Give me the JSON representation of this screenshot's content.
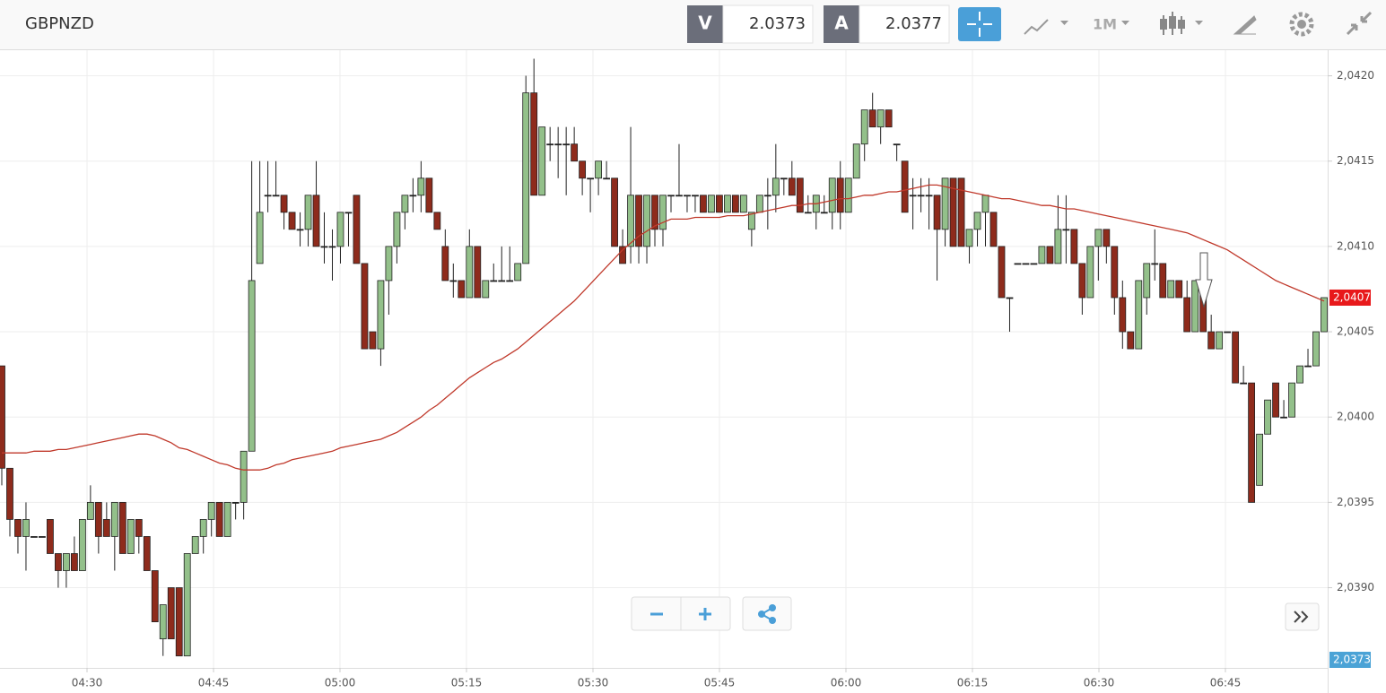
{
  "toolbar": {
    "symbol": "GBPNZD",
    "bid_label": "V",
    "bid": "2.0373",
    "ask_label": "A",
    "ask": "2.0377",
    "timeframe": "1M"
  },
  "chart_data": {
    "type": "candlestick",
    "candles": [
      [
        2.0403,
        2.0403,
        2.0396,
        2.0397
      ],
      [
        2.0397,
        2.0397,
        2.0393,
        2.0394
      ],
      [
        2.0394,
        2.0394,
        2.0392,
        2.0393
      ],
      [
        2.0393,
        2.0395,
        2.0391,
        2.0394
      ],
      [
        2.0393,
        2.0393,
        2.0393,
        2.0393
      ],
      [
        2.0393,
        2.0393,
        2.0393,
        2.0393
      ],
      [
        2.0394,
        2.0394,
        2.0392,
        2.0392
      ],
      [
        2.0392,
        2.0392,
        2.039,
        2.0391
      ],
      [
        2.0391,
        2.0392,
        2.039,
        2.0392
      ],
      [
        2.0392,
        2.0393,
        2.0391,
        2.0391
      ],
      [
        2.0391,
        2.0394,
        2.0391,
        2.0394
      ],
      [
        2.0394,
        2.0396,
        2.0394,
        2.0395
      ],
      [
        2.0395,
        2.0395,
        2.0392,
        2.0393
      ],
      [
        2.0394,
        2.0395,
        2.0393,
        2.0393
      ],
      [
        2.0393,
        2.0395,
        2.0391,
        2.0395
      ],
      [
        2.0395,
        2.0395,
        2.0392,
        2.0392
      ],
      [
        2.0392,
        2.0394,
        2.0392,
        2.0394
      ],
      [
        2.0394,
        2.0394,
        2.0392,
        2.0393
      ],
      [
        2.0393,
        2.0393,
        2.0391,
        2.0391
      ],
      [
        2.0391,
        2.0391,
        2.0388,
        2.0388
      ],
      [
        2.0387,
        2.0389,
        2.0386,
        2.0389
      ],
      [
        2.039,
        2.039,
        2.0387,
        2.0387
      ],
      [
        2.039,
        2.039,
        2.0386,
        2.0386
      ],
      [
        2.0386,
        2.0392,
        2.0386,
        2.0392
      ],
      [
        2.0392,
        2.0393,
        2.0392,
        2.0393
      ],
      [
        2.0393,
        2.0394,
        2.0392,
        2.0394
      ],
      [
        2.0394,
        2.0395,
        2.0393,
        2.0395
      ],
      [
        2.0395,
        2.0395,
        2.0393,
        2.0393
      ],
      [
        2.0393,
        2.0395,
        2.0393,
        2.0395
      ],
      [
        2.0395,
        2.0395,
        2.0394,
        2.0395
      ],
      [
        2.0395,
        2.0398,
        2.0394,
        2.0398
      ],
      [
        2.0398,
        2.0415,
        2.0398,
        2.0408
      ],
      [
        2.0409,
        2.0415,
        2.0409,
        2.0412
      ],
      [
        2.0413,
        2.0415,
        2.0412,
        2.0413
      ],
      [
        2.0413,
        2.0415,
        2.0413,
        2.0413
      ],
      [
        2.0413,
        2.0413,
        2.0411,
        2.0412
      ],
      [
        2.0412,
        2.0412,
        2.0411,
        2.0411
      ],
      [
        2.0411,
        2.0412,
        2.041,
        2.0411
      ],
      [
        2.0411,
        2.0413,
        2.041,
        2.0413
      ],
      [
        2.0413,
        2.0415,
        2.041,
        2.041
      ],
      [
        2.041,
        2.0412,
        2.0409,
        2.041
      ],
      [
        2.041,
        2.0411,
        2.0408,
        2.041
      ],
      [
        2.041,
        2.0412,
        2.0409,
        2.0412
      ],
      [
        2.0412,
        2.0412,
        2.041,
        2.0412
      ],
      [
        2.0413,
        2.0413,
        2.0409,
        2.0409
      ],
      [
        2.0409,
        2.0409,
        2.0404,
        2.0404
      ],
      [
        2.0405,
        2.0405,
        2.0404,
        2.0404
      ],
      [
        2.0404,
        2.0408,
        2.0403,
        2.0408
      ],
      [
        2.0408,
        2.041,
        2.0406,
        2.041
      ],
      [
        2.041,
        2.0412,
        2.0409,
        2.0412
      ],
      [
        2.0412,
        2.0413,
        2.0411,
        2.0413
      ],
      [
        2.0413,
        2.0414,
        2.0412,
        2.0413
      ],
      [
        2.0413,
        2.0415,
        2.0412,
        2.0414
      ],
      [
        2.0414,
        2.0414,
        2.0412,
        2.0412
      ],
      [
        2.0412,
        2.0412,
        2.0411,
        2.0411
      ],
      [
        2.041,
        2.0411,
        2.0408,
        2.0408
      ],
      [
        2.0408,
        2.0409,
        2.0407,
        2.0408
      ],
      [
        2.0408,
        2.0408,
        2.0407,
        2.0407
      ],
      [
        2.0407,
        2.0411,
        2.0407,
        2.041
      ],
      [
        2.041,
        2.041,
        2.0407,
        2.0407
      ],
      [
        2.0407,
        2.0408,
        2.0407,
        2.0408
      ],
      [
        2.0408,
        2.0409,
        2.0408,
        2.0408
      ],
      [
        2.0408,
        2.041,
        2.0408,
        2.0408
      ],
      [
        2.0408,
        2.041,
        2.0408,
        2.0408
      ],
      [
        2.0408,
        2.0409,
        2.0408,
        2.0409
      ],
      [
        2.0409,
        2.042,
        2.0409,
        2.0419
      ],
      [
        2.0419,
        2.0421,
        2.0413,
        2.0413
      ],
      [
        2.0413,
        2.0417,
        2.0413,
        2.0417
      ],
      [
        2.0416,
        2.0417,
        2.0415,
        2.0416
      ],
      [
        2.0416,
        2.0417,
        2.0414,
        2.0416
      ],
      [
        2.0416,
        2.0417,
        2.0413,
        2.0416
      ],
      [
        2.0416,
        2.0417,
        2.0415,
        2.0415
      ],
      [
        2.0415,
        2.0415,
        2.0413,
        2.0414
      ],
      [
        2.0414,
        2.0414,
        2.0412,
        2.0414
      ],
      [
        2.0414,
        2.0415,
        2.0413,
        2.0415
      ],
      [
        2.0414,
        2.0415,
        2.0414,
        2.0414
      ],
      [
        2.0414,
        2.0414,
        2.041,
        2.041
      ],
      [
        2.041,
        2.0411,
        2.0409,
        2.0409
      ],
      [
        2.041,
        2.0417,
        2.0409,
        2.0413
      ],
      [
        2.0413,
        2.0413,
        2.0409,
        2.041
      ],
      [
        2.041,
        2.0413,
        2.0409,
        2.0413
      ],
      [
        2.0413,
        2.0413,
        2.041,
        2.0411
      ],
      [
        2.0411,
        2.0413,
        2.041,
        2.0413
      ],
      [
        2.0413,
        2.0413,
        2.0412,
        2.0413
      ],
      [
        2.0413,
        2.0416,
        2.0413,
        2.0413
      ],
      [
        2.0413,
        2.0413,
        2.0412,
        2.0413
      ],
      [
        2.0413,
        2.0413,
        2.0412,
        2.0413
      ],
      [
        2.0413,
        2.0413,
        2.0412,
        2.0412
      ],
      [
        2.0412,
        2.0413,
        2.0412,
        2.0413
      ],
      [
        2.0413,
        2.0413,
        2.0412,
        2.0412
      ],
      [
        2.0412,
        2.0413,
        2.0412,
        2.0413
      ],
      [
        2.0413,
        2.0413,
        2.0412,
        2.0412
      ],
      [
        2.0412,
        2.0413,
        2.0412,
        2.0413
      ],
      [
        2.0411,
        2.0412,
        2.041,
        2.0412
      ],
      [
        2.0412,
        2.0413,
        2.0412,
        2.0413
      ],
      [
        2.0413,
        2.0414,
        2.0411,
        2.0413
      ],
      [
        2.0413,
        2.0416,
        2.0412,
        2.0414
      ],
      [
        2.0414,
        2.0414,
        2.0413,
        2.0414
      ],
      [
        2.0414,
        2.0415,
        2.0413,
        2.0413
      ],
      [
        2.0414,
        2.0414,
        2.0412,
        2.0412
      ],
      [
        2.0412,
        2.0413,
        2.0412,
        2.0412
      ],
      [
        2.0412,
        2.0413,
        2.0411,
        2.0413
      ],
      [
        2.0412,
        2.0413,
        2.0412,
        2.0412
      ],
      [
        2.0412,
        2.0414,
        2.0411,
        2.0414
      ],
      [
        2.0414,
        2.0415,
        2.0411,
        2.0412
      ],
      [
        2.0412,
        2.0414,
        2.0412,
        2.0414
      ],
      [
        2.0414,
        2.0416,
        2.0414,
        2.0416
      ],
      [
        2.0416,
        2.0418,
        2.0415,
        2.0418
      ],
      [
        2.0418,
        2.0419,
        2.0417,
        2.0417
      ],
      [
        2.0417,
        2.0418,
        2.0416,
        2.0418
      ],
      [
        2.0418,
        2.0418,
        2.0417,
        2.0417
      ],
      [
        2.0416,
        2.0416,
        2.0415,
        2.0416
      ],
      [
        2.0415,
        2.0415,
        2.0412,
        2.0412
      ],
      [
        2.0413,
        2.0414,
        2.0411,
        2.0413
      ],
      [
        2.0413,
        2.0414,
        2.0412,
        2.0413
      ],
      [
        2.0413,
        2.0414,
        2.0411,
        2.0413
      ],
      [
        2.0413,
        2.0413,
        2.0408,
        2.0411
      ],
      [
        2.0411,
        2.0414,
        2.041,
        2.0414
      ],
      [
        2.0414,
        2.0414,
        2.041,
        2.041
      ],
      [
        2.0414,
        2.0414,
        2.041,
        2.041
      ],
      [
        2.041,
        2.0411,
        2.0409,
        2.0411
      ],
      [
        2.0411,
        2.0412,
        2.041,
        2.0412
      ],
      [
        2.0412,
        2.0413,
        2.041,
        2.0413
      ],
      [
        2.0412,
        2.0412,
        2.041,
        2.041
      ],
      [
        2.041,
        2.041,
        2.0407,
        2.0407
      ],
      [
        2.0407,
        2.0407,
        2.0405,
        2.0407
      ],
      [
        2.0409,
        2.0409,
        2.0409,
        2.0409
      ],
      [
        2.0409,
        2.0409,
        2.0409,
        2.0409
      ],
      [
        2.0409,
        2.0409,
        2.0409,
        2.0409
      ],
      [
        2.0409,
        2.041,
        2.0409,
        2.041
      ],
      [
        2.041,
        2.041,
        2.0409,
        2.0409
      ],
      [
        2.0409,
        2.0413,
        2.0409,
        2.0411
      ],
      [
        2.0411,
        2.0413,
        2.0409,
        2.0411
      ],
      [
        2.0411,
        2.0411,
        2.0409,
        2.0409
      ],
      [
        2.0409,
        2.0409,
        2.0406,
        2.0407
      ],
      [
        2.0407,
        2.041,
        2.0407,
        2.041
      ],
      [
        2.041,
        2.0411,
        2.0408,
        2.0411
      ],
      [
        2.0411,
        2.0411,
        2.0409,
        2.041
      ],
      [
        2.041,
        2.041,
        2.0406,
        2.0407
      ],
      [
        2.0407,
        2.0408,
        2.0404,
        2.0405
      ],
      [
        2.0405,
        2.0405,
        2.0404,
        2.0404
      ],
      [
        2.0404,
        2.0408,
        2.0404,
        2.0408
      ],
      [
        2.0407,
        2.0409,
        2.0406,
        2.0409
      ],
      [
        2.0409,
        2.0411,
        2.0408,
        2.0409
      ],
      [
        2.0409,
        2.0409,
        2.0407,
        2.0407
      ],
      [
        2.0407,
        2.0408,
        2.0407,
        2.0408
      ],
      [
        2.0408,
        2.0408,
        2.0407,
        2.0407
      ],
      [
        2.0407,
        2.0408,
        2.0405,
        2.0405
      ],
      [
        2.0405,
        2.0408,
        2.0405,
        2.0408
      ],
      [
        2.0408,
        2.0408,
        2.0405,
        2.0405
      ],
      [
        2.0405,
        2.0406,
        2.0404,
        2.0404
      ],
      [
        2.0404,
        2.0405,
        2.0404,
        2.0405
      ],
      [
        2.0405,
        2.0405,
        2.0405,
        2.0405
      ],
      [
        2.0405,
        2.0405,
        2.0402,
        2.0402
      ],
      [
        2.0402,
        2.0403,
        2.0402,
        2.0402
      ],
      [
        2.0402,
        2.0402,
        2.0395,
        2.0395
      ],
      [
        2.0396,
        2.0399,
        2.0396,
        2.0399
      ],
      [
        2.0399,
        2.0401,
        2.0399,
        2.0401
      ],
      [
        2.0402,
        2.0402,
        2.04,
        2.04
      ],
      [
        2.04,
        2.0401,
        2.04,
        2.04
      ],
      [
        2.04,
        2.0402,
        2.04,
        2.0402
      ],
      [
        2.0402,
        2.0403,
        2.0402,
        2.0403
      ],
      [
        2.0403,
        2.0404,
        2.0403,
        2.0403
      ],
      [
        2.0403,
        2.0405,
        2.0403,
        2.0405
      ],
      [
        2.0405,
        2.0407,
        2.0405,
        2.0407
      ]
    ],
    "up_color": "#93c08a",
    "down_color": "#8e2b1c",
    "moving_average": {
      "color": "#c0392b",
      "values": [
        2.03979,
        2.03979,
        2.03979,
        2.03979,
        2.0398,
        2.0398,
        2.0398,
        2.03981,
        2.03981,
        2.03982,
        2.03983,
        2.03984,
        2.03985,
        2.03986,
        2.03987,
        2.03988,
        2.03989,
        2.0399,
        2.0399,
        2.03989,
        2.03987,
        2.03985,
        2.03982,
        2.03981,
        2.03979,
        2.03977,
        2.03975,
        2.03973,
        2.03972,
        2.0397,
        2.03969,
        2.03969,
        2.03969,
        2.0397,
        2.03972,
        2.03973,
        2.03975,
        2.03976,
        2.03977,
        2.03978,
        2.03979,
        2.0398,
        2.03982,
        2.03983,
        2.03984,
        2.03985,
        2.03986,
        2.03987,
        2.03989,
        2.03991,
        2.03994,
        2.03997,
        2.04,
        2.04004,
        2.04007,
        2.04011,
        2.04015,
        2.04019,
        2.04023,
        2.04026,
        2.04029,
        2.04032,
        2.04034,
        2.04037,
        2.0404,
        2.04044,
        2.04048,
        2.04052,
        2.04056,
        2.0406,
        2.04064,
        2.04068,
        2.04073,
        2.04078,
        2.04083,
        2.04088,
        2.04093,
        2.04098,
        2.04102,
        2.04106,
        2.04109,
        2.04112,
        2.04114,
        2.04116,
        2.04116,
        2.04116,
        2.04117,
        2.04117,
        2.04117,
        2.04117,
        2.04118,
        2.04118,
        2.04118,
        2.04119,
        2.0412,
        2.04121,
        2.04122,
        2.04123,
        2.04124,
        2.04124,
        2.04125,
        2.04125,
        2.04126,
        2.04127,
        2.04128,
        2.04128,
        2.04129,
        2.0413,
        2.0413,
        2.04131,
        2.04132,
        2.04132,
        2.04133,
        2.04134,
        2.04135,
        2.04136,
        2.04136,
        2.04135,
        2.04134,
        2.04133,
        2.04132,
        2.04131,
        2.0413,
        2.04129,
        2.04128,
        2.04128,
        2.04127,
        2.04126,
        2.04125,
        2.04124,
        2.04124,
        2.04123,
        2.04122,
        2.04122,
        2.04121,
        2.0412,
        2.04119,
        2.04118,
        2.04117,
        2.04116,
        2.04115,
        2.04114,
        2.04113,
        2.04112,
        2.04111,
        2.0411,
        2.04109,
        2.04108,
        2.04106,
        2.04104,
        2.04102,
        2.041,
        2.04098,
        2.04095,
        2.04092,
        2.04089,
        2.04086,
        2.04083,
        2.0408,
        2.04078,
        2.04076,
        2.04074,
        2.04072,
        2.0407,
        2.04068
      ]
    },
    "ylim": [
      2.03853,
      2.04215
    ],
    "yticks": [
      {
        "value": 2.039,
        "label": "2,0390"
      },
      {
        "value": 2.0395,
        "label": "2,0395"
      },
      {
        "value": 2.04,
        "label": "2,0400"
      },
      {
        "value": 2.0405,
        "label": "2,0405"
      },
      {
        "value": 2.041,
        "label": "2,0410"
      },
      {
        "value": 2.0415,
        "label": "2,0415"
      },
      {
        "value": 2.042,
        "label": "2,0420"
      }
    ],
    "xticks": [
      "04:30",
      "04:45",
      "05:00",
      "05:15",
      "05:30",
      "05:45",
      "06:00",
      "06:15",
      "06:30",
      "06:45"
    ],
    "last_price": {
      "value": 2.0407,
      "label": "2,0407",
      "color": "#e8191b"
    },
    "bid_price": {
      "value": 2.0373,
      "label": "2,0373",
      "color": "#4ba3d6"
    },
    "grid": true
  }
}
